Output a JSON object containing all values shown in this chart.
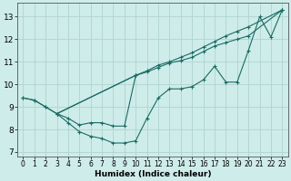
{
  "xlabel": "Humidex (Indice chaleur)",
  "bg_color": "#ceecea",
  "grid_color": "#b0d4d0",
  "line_color": "#1a6b63",
  "xlim": [
    -0.5,
    23.5
  ],
  "ylim": [
    6.8,
    13.6
  ],
  "xticks": [
    0,
    1,
    2,
    3,
    4,
    5,
    6,
    7,
    8,
    9,
    10,
    11,
    12,
    13,
    14,
    15,
    16,
    17,
    18,
    19,
    20,
    21,
    22,
    23
  ],
  "yticks": [
    7,
    8,
    9,
    10,
    11,
    12,
    13
  ],
  "line1_x": [
    0,
    1,
    2,
    3,
    4,
    5,
    6,
    7,
    8,
    9,
    10,
    11,
    12,
    13,
    14,
    15,
    16,
    17,
    18,
    19,
    20,
    21,
    22,
    23
  ],
  "line1_y": [
    9.4,
    9.3,
    9.0,
    8.7,
    8.3,
    7.9,
    7.7,
    7.6,
    7.4,
    7.4,
    7.5,
    8.5,
    9.4,
    9.8,
    9.8,
    9.9,
    10.2,
    10.8,
    10.1,
    10.1,
    11.5,
    13.0,
    12.1,
    13.3
  ],
  "line2_x": [
    0,
    1,
    2,
    3,
    10,
    11,
    12,
    13,
    14,
    15,
    16,
    17,
    18,
    19,
    20,
    23
  ],
  "line2_y": [
    9.4,
    9.3,
    9.0,
    8.7,
    10.4,
    10.55,
    10.75,
    10.95,
    11.05,
    11.2,
    11.45,
    11.7,
    11.85,
    12.0,
    12.15,
    13.3
  ],
  "line3_x": [
    3,
    10,
    11,
    12,
    13,
    14,
    15,
    16,
    17,
    18,
    19,
    20,
    23
  ],
  "line3_y": [
    8.7,
    10.4,
    10.6,
    10.85,
    11.0,
    11.2,
    11.4,
    11.65,
    11.9,
    12.15,
    12.35,
    12.55,
    13.3
  ],
  "line4_x": [
    3,
    4,
    5,
    6,
    7,
    8,
    9,
    10
  ],
  "line4_y": [
    8.7,
    8.5,
    8.2,
    8.3,
    8.3,
    8.15,
    8.15,
    10.4
  ]
}
